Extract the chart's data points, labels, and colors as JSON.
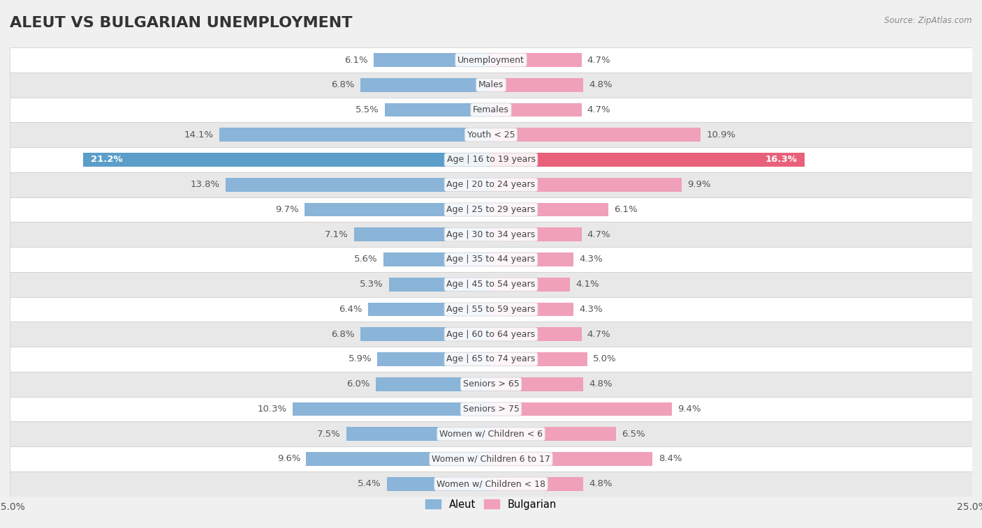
{
  "title": "ALEUT VS BULGARIAN UNEMPLOYMENT",
  "source": "Source: ZipAtlas.com",
  "categories": [
    "Unemployment",
    "Males",
    "Females",
    "Youth < 25",
    "Age | 16 to 19 years",
    "Age | 20 to 24 years",
    "Age | 25 to 29 years",
    "Age | 30 to 34 years",
    "Age | 35 to 44 years",
    "Age | 45 to 54 years",
    "Age | 55 to 59 years",
    "Age | 60 to 64 years",
    "Age | 65 to 74 years",
    "Seniors > 65",
    "Seniors > 75",
    "Women w/ Children < 6",
    "Women w/ Children 6 to 17",
    "Women w/ Children < 18"
  ],
  "aleut_values": [
    6.1,
    6.8,
    5.5,
    14.1,
    21.2,
    13.8,
    9.7,
    7.1,
    5.6,
    5.3,
    6.4,
    6.8,
    5.9,
    6.0,
    10.3,
    7.5,
    9.6,
    5.4
  ],
  "bulgarian_values": [
    4.7,
    4.8,
    4.7,
    10.9,
    16.3,
    9.9,
    6.1,
    4.7,
    4.3,
    4.1,
    4.3,
    4.7,
    5.0,
    4.8,
    9.4,
    6.5,
    8.4,
    4.8
  ],
  "aleut_color": "#8ab4d8",
  "aleut_highlight_color": "#5b9ec9",
  "bulgarian_color": "#f0a0b8",
  "bulgarian_highlight_color": "#e8607a",
  "highlight_row": 4,
  "xlim": 25.0,
  "bar_height": 0.55,
  "background_color": "#f0f0f0",
  "row_bg_light": "#ffffff",
  "row_bg_dark": "#e8e8e8",
  "legend_aleut": "Aleut",
  "legend_bulgarian": "Bulgarian",
  "title_fontsize": 16,
  "label_fontsize": 9.5,
  "category_fontsize": 9,
  "value_color_normal": "#555555",
  "value_color_highlight": "#ffffff"
}
